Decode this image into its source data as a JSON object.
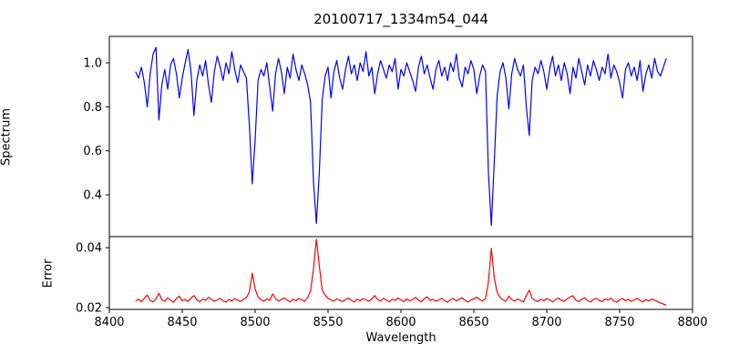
{
  "chart_data": {
    "type": "line",
    "title": "20100717_1334m54_044",
    "xlabel": "Wavelength",
    "grid": false,
    "legend": "none",
    "background": "#ffffff",
    "xlim": [
      8400,
      8800
    ],
    "xticks": [
      8400,
      8450,
      8500,
      8550,
      8600,
      8650,
      8700,
      8750,
      8800
    ],
    "x_start": 8418,
    "x_step": 2,
    "absorption_line_centers": [
      8498,
      8542,
      8662
    ],
    "panels": [
      {
        "name": "spectrum",
        "ylabel": "Spectrum",
        "color": "#0000ff",
        "ylim": [
          0.21,
          1.12
        ],
        "yticks": [
          0.4,
          0.6,
          0.8,
          1.0
        ],
        "ytick_labels": [
          "0.4",
          "0.6",
          "0.8",
          "1.0"
        ],
        "values": [
          0.96,
          0.93,
          0.98,
          0.91,
          0.8,
          0.95,
          1.04,
          1.07,
          0.74,
          0.9,
          0.97,
          0.88,
          0.99,
          1.02,
          0.95,
          0.84,
          0.93,
          1.0,
          1.06,
          0.96,
          0.76,
          0.92,
          0.99,
          0.94,
          1.01,
          0.9,
          0.82,
          0.96,
          1.03,
          0.98,
          0.92,
          1.0,
          0.95,
          1.05,
          0.97,
          0.91,
          0.99,
          0.96,
          0.93,
          0.72,
          0.45,
          0.65,
          0.92,
          0.97,
          0.94,
          1.0,
          0.89,
          0.78,
          0.95,
          1.02,
          0.96,
          0.86,
          0.98,
          0.93,
          1.04,
          0.97,
          0.92,
          0.99,
          0.95,
          0.9,
          0.82,
          0.46,
          0.27,
          0.5,
          0.83,
          0.94,
          0.98,
          0.84,
          0.96,
          1.01,
          0.93,
          0.88,
          0.97,
          1.03,
          0.95,
          0.99,
          0.92,
          1.0,
          0.96,
          1.05,
          0.94,
          0.98,
          0.86,
          0.95,
          1.01,
          0.97,
          0.93,
          0.99,
          0.96,
          1.02,
          0.88,
          0.97,
          0.94,
          1.0,
          0.96,
          0.92,
          0.87,
          0.98,
          1.03,
          0.95,
          0.99,
          0.93,
          0.88,
          0.97,
          1.01,
          0.94,
          0.98,
          0.92,
          1.0,
          0.96,
          1.04,
          0.93,
          0.89,
          0.98,
          0.95,
          1.01,
          0.97,
          0.86,
          0.94,
          0.99,
          0.96,
          0.5,
          0.26,
          0.55,
          0.85,
          0.96,
          1.0,
          0.93,
          0.79,
          0.95,
          1.02,
          0.97,
          0.94,
          0.99,
          0.8,
          0.67,
          0.92,
          0.98,
          0.95,
          1.01,
          0.96,
          0.88,
          0.97,
          1.03,
          0.94,
          0.99,
          0.92,
          1.0,
          0.95,
          0.86,
          0.98,
          0.93,
          1.02,
          0.96,
          0.9,
          0.99,
          0.94,
          1.01,
          0.97,
          0.92,
          0.98,
          0.95,
          1.04,
          0.93,
          0.99,
          0.96,
          0.91,
          0.84,
          0.97,
          1.0,
          0.94,
          0.98,
          0.92,
          1.01,
          0.87,
          0.95,
          0.99,
          0.93,
          1.02,
          0.96,
          0.94,
          0.98,
          1.02
        ]
      },
      {
        "name": "error",
        "ylabel": "Error",
        "color": "#ff0000",
        "ylim": [
          0.0194,
          0.0437
        ],
        "yticks": [
          0.02,
          0.04
        ],
        "ytick_labels": [
          "0.02",
          "0.04"
        ],
        "values": [
          0.0222,
          0.0228,
          0.022,
          0.0231,
          0.0242,
          0.0224,
          0.0219,
          0.0229,
          0.0248,
          0.0226,
          0.0221,
          0.0233,
          0.0225,
          0.0218,
          0.023,
          0.0238,
          0.0223,
          0.0227,
          0.022,
          0.0232,
          0.024,
          0.0226,
          0.0219,
          0.0229,
          0.0224,
          0.0234,
          0.0228,
          0.0221,
          0.0226,
          0.0231,
          0.0223,
          0.0218,
          0.0227,
          0.0222,
          0.023,
          0.0225,
          0.022,
          0.0228,
          0.0233,
          0.0252,
          0.0315,
          0.0262,
          0.0235,
          0.0226,
          0.0221,
          0.0229,
          0.0224,
          0.0246,
          0.023,
          0.0222,
          0.0227,
          0.0233,
          0.0225,
          0.0219,
          0.0228,
          0.0223,
          0.023,
          0.0226,
          0.0221,
          0.0234,
          0.0255,
          0.033,
          0.0428,
          0.034,
          0.0258,
          0.0242,
          0.0231,
          0.0226,
          0.0222,
          0.0229,
          0.0225,
          0.022,
          0.0227,
          0.0232,
          0.0224,
          0.0219,
          0.0228,
          0.0223,
          0.023,
          0.0226,
          0.0221,
          0.0229,
          0.024,
          0.0227,
          0.0222,
          0.0231,
          0.0225,
          0.0219,
          0.0228,
          0.0224,
          0.0232,
          0.0226,
          0.022,
          0.0229,
          0.0223,
          0.0227,
          0.0234,
          0.0225,
          0.0219,
          0.023,
          0.0236,
          0.0224,
          0.0228,
          0.0221,
          0.0226,
          0.0231,
          0.0223,
          0.0218,
          0.0227,
          0.023,
          0.0222,
          0.0228,
          0.0233,
          0.0224,
          0.0219,
          0.0226,
          0.0229,
          0.0235,
          0.0227,
          0.0222,
          0.023,
          0.0285,
          0.0398,
          0.03,
          0.025,
          0.0234,
          0.0226,
          0.0221,
          0.0238,
          0.0227,
          0.0222,
          0.0229,
          0.0224,
          0.0219,
          0.024,
          0.0258,
          0.0231,
          0.0224,
          0.022,
          0.0228,
          0.0223,
          0.023,
          0.0226,
          0.0219,
          0.0227,
          0.0232,
          0.0224,
          0.0221,
          0.0229,
          0.0236,
          0.024,
          0.0225,
          0.022,
          0.0228,
          0.0233,
          0.0223,
          0.0219,
          0.0227,
          0.0231,
          0.0224,
          0.022,
          0.0229,
          0.0225,
          0.0232,
          0.0222,
          0.0218,
          0.0226,
          0.023,
          0.0223,
          0.0228,
          0.0221,
          0.0226,
          0.0231,
          0.0224,
          0.0219,
          0.0227,
          0.0222,
          0.0229,
          0.0225,
          0.022,
          0.0216,
          0.0212,
          0.0208
        ]
      }
    ]
  }
}
